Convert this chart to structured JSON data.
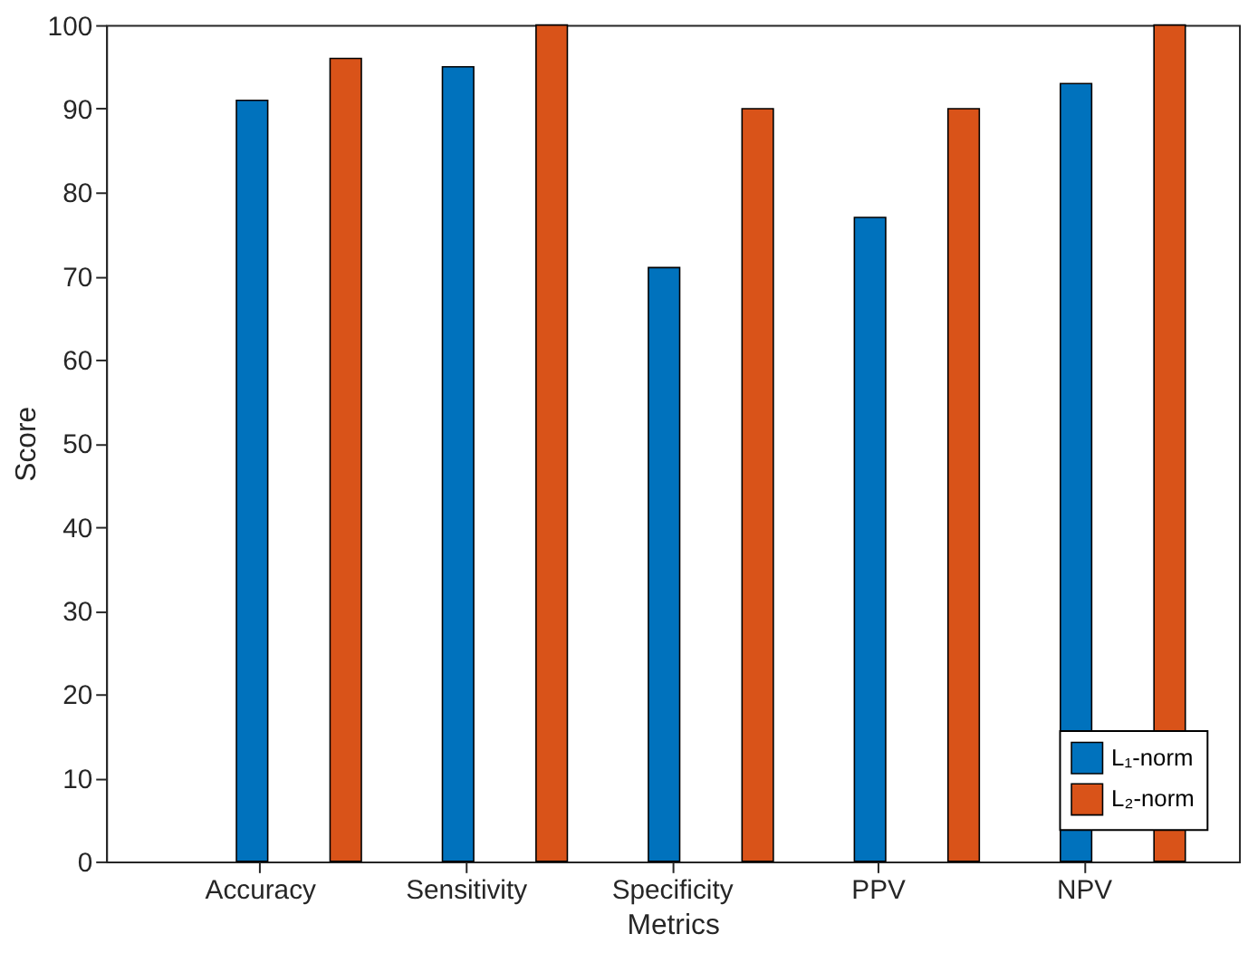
{
  "chart_data": {
    "type": "bar",
    "xlabel": "Metrics",
    "ylabel": "Score",
    "categories": [
      "Accuracy",
      "Sensitivity",
      "Specificity",
      "PPV",
      "NPV"
    ],
    "series": [
      {
        "name": "L₁-norm",
        "color": "#0072bd",
        "values": [
          91,
          95,
          71,
          77,
          93
        ]
      },
      {
        "name": "L₂-norm",
        "color": "#d95319",
        "values": [
          96,
          100,
          90,
          90,
          100
        ]
      }
    ],
    "ylim": [
      0,
      100
    ],
    "yticks": [
      0,
      10,
      20,
      30,
      40,
      50,
      60,
      70,
      80,
      90,
      100
    ],
    "grid": false,
    "legend": "bottom right"
  }
}
